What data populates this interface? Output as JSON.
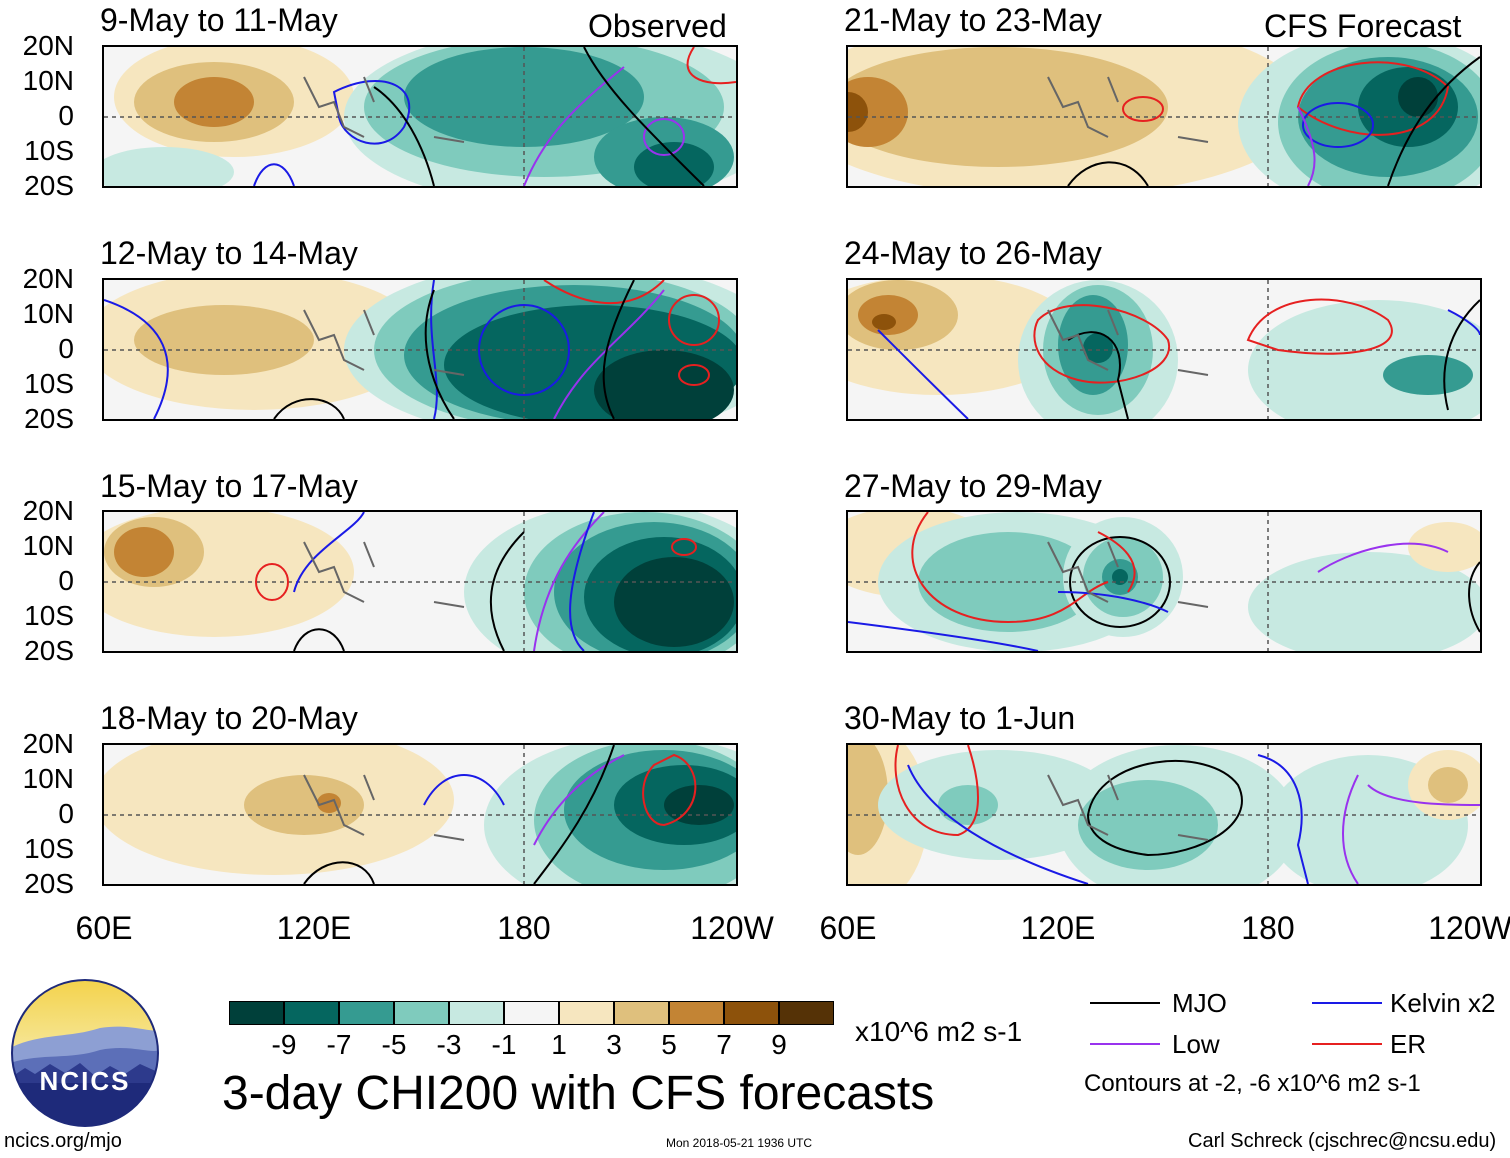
{
  "panels": [
    {
      "title": "9-May to 11-May",
      "tag": "Observed"
    },
    {
      "title": "21-May to 23-May",
      "tag": "CFS Forecast"
    },
    {
      "title": "12-May to 14-May",
      "tag": ""
    },
    {
      "title": "24-May to 26-May",
      "tag": ""
    },
    {
      "title": "15-May to 17-May",
      "tag": ""
    },
    {
      "title": "27-May to 29-May",
      "tag": ""
    },
    {
      "title": "18-May to 20-May",
      "tag": ""
    },
    {
      "title": "30-May to 1-Jun",
      "tag": ""
    }
  ],
  "lat_labels": [
    "20N",
    "10N",
    "0",
    "10S",
    "20S"
  ],
  "lon_labels": [
    "60E",
    "120E",
    "180",
    "120W"
  ],
  "colorbar": {
    "colors": [
      "#00403a",
      "#05665f",
      "#359b91",
      "#7fcbbd",
      "#c7e9e1",
      "#f5f5f5",
      "#f6e6bf",
      "#dfc07d",
      "#c38434",
      "#8d520b",
      "#553206"
    ],
    "labels": [
      "-9",
      "-7",
      "-5",
      "-3",
      "-1",
      "1",
      "3",
      "5",
      "7",
      "9"
    ],
    "units": "x10^6 m2 s-1"
  },
  "main_title": "3-day CHI200 with CFS forecasts",
  "legend": {
    "items": [
      {
        "label": "MJO",
        "color": "#000000"
      },
      {
        "label": "Kelvin x2",
        "color": "#1a1ae6"
      },
      {
        "label": "Low",
        "color": "#9933ee"
      },
      {
        "label": "ER",
        "color": "#e62020"
      }
    ],
    "note": "Contours at -2, -6 x10^6 m2 s-1"
  },
  "logo_text": "NCICS",
  "footer": {
    "url": "ncics.org/mjo",
    "timestamp": "Mon 2018-05-21 1936 UTC",
    "credit": "Carl Schreck (cjschrec@ncsu.edu)"
  }
}
